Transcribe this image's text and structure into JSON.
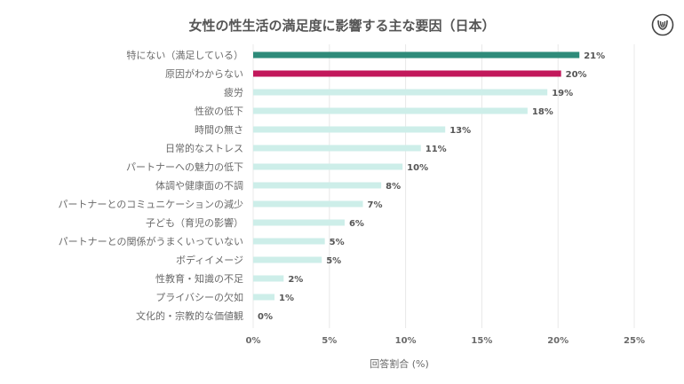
{
  "page": {
    "title": "女性の性生活の満足度に影響する主な要因（日本）",
    "logo_icon": "womb-circle-logo"
  },
  "colors": {
    "highlight_1": "#2e8b7a",
    "highlight_2": "#c2185b",
    "default_bar": "#cdeee9",
    "grid": "#e8e8e8"
  },
  "chart_data": {
    "type": "bar",
    "orientation": "horizontal",
    "title": "女性の性生活の満足度に影響する主な要因（日本）",
    "xlabel": "回答割合 (%)",
    "ylabel": "",
    "xlim": [
      0,
      25
    ],
    "xticks": [
      0,
      5,
      10,
      15,
      20,
      25
    ],
    "xtick_labels": [
      "0%",
      "5%",
      "10%",
      "15%",
      "20%",
      "25%"
    ],
    "grid": "vertical",
    "categories": [
      "特にない（満足している）",
      "原因がわからない",
      "疲労",
      "性欲の低下",
      "時間の無さ",
      "日常的なストレス",
      "パートナーへの魅力の低下",
      "体調や健康面の不調",
      "パートナーとのコミュニケーションの減少",
      "子ども（育児の影響）",
      "パートナーとの関係がうまくいっていない",
      "ボディイメージ",
      "性教育・知識の不足",
      "プライバシーの欠如",
      "文化的・宗教的な価値観"
    ],
    "values": [
      21.4,
      20.2,
      19.3,
      18.0,
      12.6,
      11.0,
      9.8,
      8.4,
      7.2,
      6.0,
      4.7,
      4.5,
      2.0,
      1.4,
      0
    ],
    "value_labels": [
      "21%",
      "20%",
      "19%",
      "18%",
      "13%",
      "11%",
      "10%",
      "8%",
      "7%",
      "6%",
      "5%",
      "5%",
      "2%",
      "1%",
      "0%"
    ],
    "bar_colors": [
      "highlight_1",
      "highlight_2",
      "default_bar",
      "default_bar",
      "default_bar",
      "default_bar",
      "default_bar",
      "default_bar",
      "default_bar",
      "default_bar",
      "default_bar",
      "default_bar",
      "default_bar",
      "default_bar",
      "default_bar"
    ]
  }
}
